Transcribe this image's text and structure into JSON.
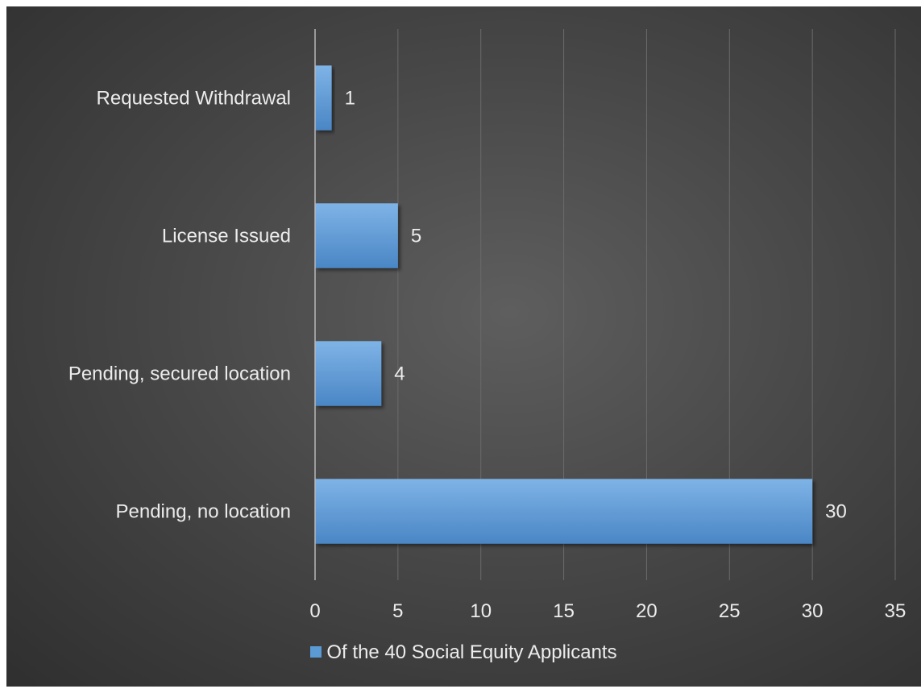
{
  "chart_data": {
    "type": "bar",
    "orientation": "horizontal",
    "categories": [
      "Requested Withdrawal",
      "License Issued",
      "Pending, secured location",
      "Pending, no location"
    ],
    "series": [
      {
        "name": "Of the 40 Social Equity Applicants",
        "values": [
          1,
          5,
          4,
          30
        ],
        "color": "#5b9bd5"
      }
    ],
    "xlim": [
      0,
      35
    ],
    "x_ticks": [
      "0",
      "5",
      "10",
      "15",
      "20",
      "25",
      "30",
      "35"
    ],
    "data_labels": [
      "1",
      "5",
      "4",
      "30"
    ],
    "grid": true,
    "legend": "bottom",
    "background": "#3a3a3a",
    "gridline_color": "#6a6a6a",
    "text_color": "#ececec"
  }
}
